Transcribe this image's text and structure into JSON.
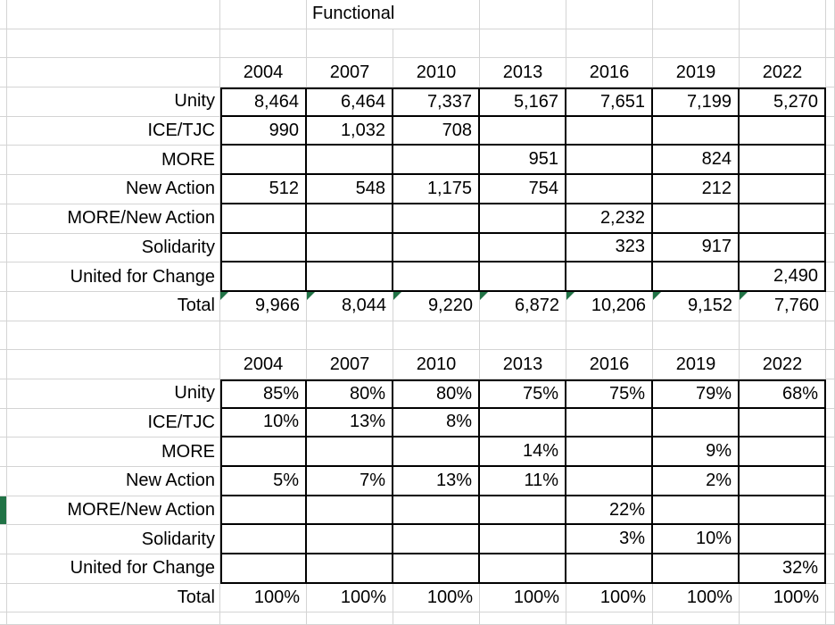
{
  "title": "Functional",
  "total_label": "Total",
  "years": [
    "2004",
    "2007",
    "2010",
    "2013",
    "2016",
    "2019",
    "2022"
  ],
  "counts_table": {
    "rows": [
      {
        "label": "Unity",
        "values": [
          "8,464",
          "6,464",
          "7,337",
          "5,167",
          "7,651",
          "7,199",
          "5,270"
        ]
      },
      {
        "label": "ICE/TJC",
        "values": [
          "990",
          "1,032",
          "708",
          "",
          "",
          "",
          ""
        ]
      },
      {
        "label": "MORE",
        "values": [
          "",
          "",
          "",
          "951",
          "",
          "824",
          ""
        ]
      },
      {
        "label": "New Action",
        "values": [
          "512",
          "548",
          "1,175",
          "754",
          "",
          "212",
          ""
        ]
      },
      {
        "label": "MORE/New Action",
        "values": [
          "",
          "",
          "",
          "",
          "2,232",
          "",
          ""
        ]
      },
      {
        "label": "Solidarity",
        "values": [
          "",
          "",
          "",
          "",
          "323",
          "917",
          ""
        ]
      },
      {
        "label": "United for Change",
        "values": [
          "",
          "",
          "",
          "",
          "",
          "",
          "2,490"
        ]
      }
    ],
    "totals": [
      "9,966",
      "8,044",
      "9,220",
      "6,872",
      "10,206",
      "9,152",
      "7,760"
    ]
  },
  "percent_table": {
    "rows": [
      {
        "label": "Unity",
        "values": [
          "85%",
          "80%",
          "80%",
          "75%",
          "75%",
          "79%",
          "68%"
        ]
      },
      {
        "label": "ICE/TJC",
        "values": [
          "10%",
          "13%",
          "8%",
          "",
          "",
          "",
          ""
        ]
      },
      {
        "label": "MORE",
        "values": [
          "",
          "",
          "",
          "14%",
          "",
          "9%",
          ""
        ]
      },
      {
        "label": "New Action",
        "values": [
          "5%",
          "7%",
          "13%",
          "11%",
          "",
          "2%",
          ""
        ]
      },
      {
        "label": "MORE/New Action",
        "values": [
          "",
          "",
          "",
          "",
          "22%",
          "",
          ""
        ]
      },
      {
        "label": "Solidarity",
        "values": [
          "",
          "",
          "",
          "",
          "3%",
          "10%",
          ""
        ]
      },
      {
        "label": "United for Change",
        "values": [
          "",
          "",
          "",
          "",
          "",
          "",
          "32%"
        ]
      }
    ],
    "totals": [
      "100%",
      "100%",
      "100%",
      "100%",
      "100%",
      "100%",
      "100%"
    ]
  },
  "colors": {
    "gridline": "#d4d4d4",
    "cell_border": "#000000",
    "excel_green": "#217346",
    "text": "#000000",
    "background": "#ffffff"
  }
}
